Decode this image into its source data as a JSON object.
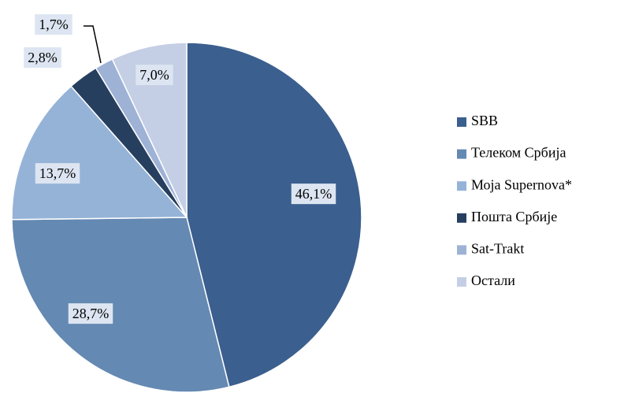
{
  "chart_data": {
    "type": "pie",
    "categories": [
      "SBB",
      "Телеком Србија",
      "Моја Supernova*",
      "Пошта Србије",
      "Sat-Trakt",
      "Остали"
    ],
    "values": [
      46.1,
      28.7,
      13.7,
      2.8,
      1.7,
      7.0
    ],
    "value_labels": [
      "46,1%",
      "28,7%",
      "13,7%",
      "2,8%",
      "1,7%",
      "7,0%"
    ],
    "colors": [
      "#3b5f8e",
      "#6489b2",
      "#95b3d7",
      "#263f5f",
      "#9eb2d6",
      "#c4cee5"
    ],
    "legend": "right"
  }
}
